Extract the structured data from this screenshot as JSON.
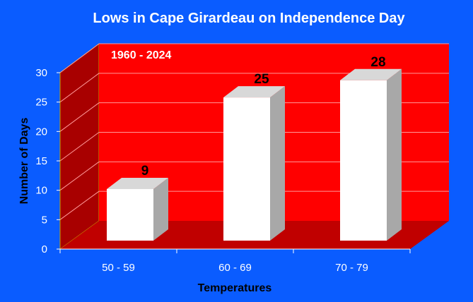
{
  "chart_data": {
    "type": "bar",
    "title": "Lows in Cape Girardeau on Independence Day",
    "subtitle": "1960 - 2024",
    "xlabel": "Temperatures",
    "ylabel": "Number of Days",
    "categories": [
      "50 - 59",
      "60 - 69",
      "70 - 79"
    ],
    "values": [
      9,
      25,
      28
    ],
    "ylim": [
      0,
      30
    ],
    "yticks": [
      0,
      5,
      10,
      15,
      20,
      25,
      30
    ],
    "grid": true,
    "legend": "none",
    "colors": {
      "background": "#0a5cff",
      "back_wall": "#ff0000",
      "side_wall": "#a80000",
      "floor": "#c00000",
      "bar_front": "#ffffff",
      "bar_top": "#d8d8d8",
      "bar_side": "#a8a8a8",
      "gridline": "#ff9a9a"
    }
  }
}
